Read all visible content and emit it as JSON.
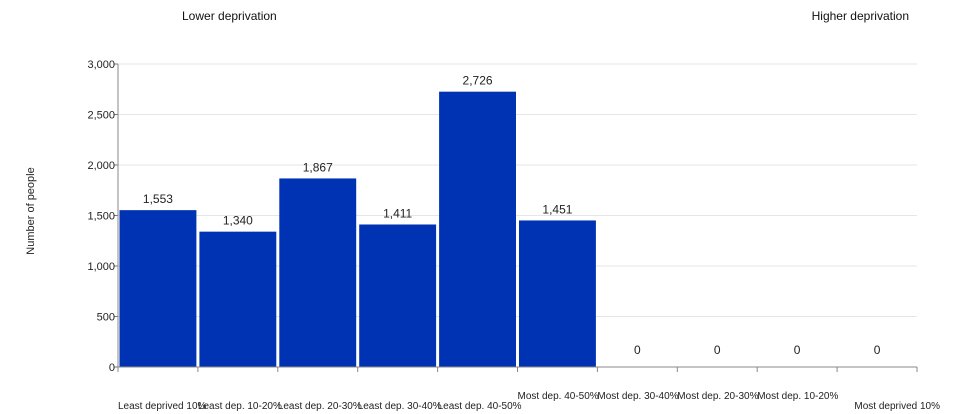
{
  "header": {
    "left_label": "Lower deprivation",
    "right_label": "Higher deprivation"
  },
  "chart_data": {
    "type": "bar",
    "ylabel": "Number of people",
    "ylim": [
      0,
      3000
    ],
    "yticks": [
      0,
      500,
      1000,
      1500,
      2000,
      2500,
      3000
    ],
    "ytick_labels": [
      "0",
      "500",
      "1,000",
      "1,500",
      "2,000",
      "2,500",
      "3,000"
    ],
    "categories": [
      "Least deprived 10%",
      "Least dep. 10-20%",
      "Least dep. 20-30%",
      "Least dep. 30-40%",
      "Least dep. 40-50%",
      "Most dep. 40-50%",
      "Most dep. 30-40%",
      "Most dep. 20-30%",
      "Most dep. 10-20%",
      "Most deprived 10%"
    ],
    "values": [
      1553,
      1340,
      1867,
      1411,
      2726,
      1451,
      0,
      0,
      0,
      0
    ],
    "value_labels": [
      "1,553",
      "1,340",
      "1,867",
      "1,411",
      "2,726",
      "1,451",
      "0",
      "0",
      "0",
      "0"
    ],
    "bar_color": "#0033b3",
    "grid": true
  }
}
